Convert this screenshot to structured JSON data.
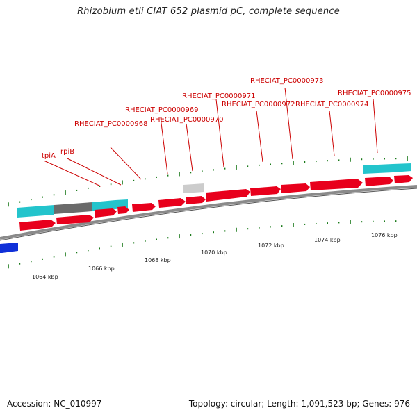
{
  "title": "Rhizobium etli CIAT 652 plasmid pC, complete sequence",
  "footer": {
    "accession": "Accession: NC_010997",
    "info": "Topology: circular; Length: 1,091,523 bp; Genes: 976"
  },
  "colors": {
    "cds_forward": "#e8001c",
    "cds_reverse": "#e8001c",
    "gene_cyan": "#23c4cc",
    "gene_grey": "#6a6a6a",
    "gene_light": "#cccccc",
    "backbone": "#8a8a8a",
    "tick": "#1a7a1a",
    "label_red": "#cc0000",
    "leader": "#cc0000",
    "scale_text": "#222222"
  },
  "scale_labels": [
    "1064 kbp",
    "1066 kbp",
    "1068 kbp",
    "1070 kbp",
    "1072 kbp",
    "1074 kbp",
    "1076 kbp"
  ],
  "gene_labels": [
    {
      "name": "tpiA"
    },
    {
      "name": "rpiB"
    },
    {
      "name": "RHECIAT_PC0000968"
    },
    {
      "name": "RHECIAT_PC0000969"
    },
    {
      "name": "RHECIAT_PC0000970"
    },
    {
      "name": "RHECIAT_PC0000971"
    },
    {
      "name": "RHECIAT_PC0000972"
    },
    {
      "name": "RHECIAT_PC0000973"
    },
    {
      "name": "RHECIAT_PC0000974"
    },
    {
      "name": "RHECIAT_PC0000975"
    }
  ]
}
